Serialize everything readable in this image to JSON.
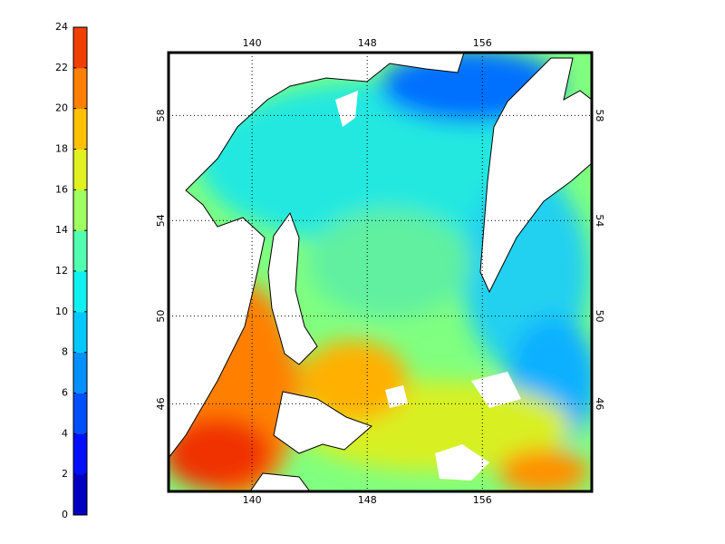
{
  "colorbar": {
    "lim": [
      0,
      24
    ],
    "ticks": [
      0,
      2,
      4,
      6,
      8,
      10,
      12,
      14,
      16,
      18,
      20,
      22,
      24
    ],
    "colors": [
      "#0000c0",
      "#0010ff",
      "#0050ff",
      "#0090ff",
      "#00c8ff",
      "#10f0f0",
      "#50ffb0",
      "#a0ff60",
      "#e0f020",
      "#ffc000",
      "#ff8000",
      "#f04000"
    ]
  },
  "map": {
    "projection": "mercator",
    "xlim": [
      134.2,
      163.6
    ],
    "ylim": [
      41.7,
      60.2
    ],
    "xticks": [
      140,
      148,
      156
    ],
    "yticks": [
      46,
      50,
      54,
      58
    ],
    "grid": true
  }
}
